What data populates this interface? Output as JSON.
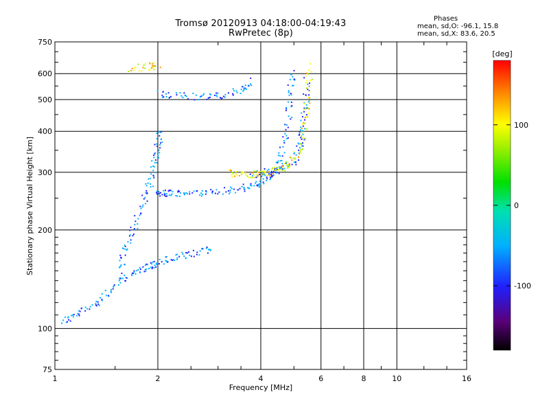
{
  "header": {
    "title_line1": "Tromsø 20120913 04:18:00-04:19:43",
    "title_line2": "RwPretec (8p)"
  },
  "stats": {
    "label": "Phases",
    "o_line": "mean, sd,O: -96.1, 15.8",
    "x_line": "mean, sd,X:  83.6, 20.5"
  },
  "chart_data": {
    "type": "scatter",
    "xlabel": "Frequency [MHz]",
    "ylabel": "Stationary phase Virtual Height [km]",
    "xscale": "log",
    "yscale": "log",
    "xlim": [
      1,
      16
    ],
    "ylim": [
      75,
      750
    ],
    "x_ticks": [
      1,
      2,
      4,
      6,
      8,
      10,
      16
    ],
    "x_tick_labels": [
      "1",
      "2",
      "4",
      "6",
      "8",
      "10",
      "16"
    ],
    "y_ticks": [
      75,
      100,
      200,
      300,
      400,
      500,
      600,
      750
    ],
    "y_tick_labels": [
      "75",
      "100",
      "200",
      "300",
      "400",
      "500",
      "600",
      "750"
    ],
    "grid": true,
    "colorbar": {
      "label": "[deg]",
      "range": [
        -180,
        180
      ],
      "ticks": [
        100,
        0,
        -100
      ],
      "tick_labels": [
        "100",
        "0",
        "-100"
      ]
    },
    "series": [
      {
        "name": "O-mode",
        "mean_phase": -96.1,
        "segments": [
          {
            "x": [
              1.05,
              1.15,
              1.3,
              1.45,
              1.6,
              1.75,
              1.9,
              2.05,
              2.3,
              2.6,
              2.9
            ],
            "y": [
              105,
              110,
              118,
              130,
              142,
              150,
              155,
              160,
              165,
              170,
              175
            ]
          },
          {
            "x": [
              1.55,
              1.6,
              1.7,
              1.8,
              1.9,
              1.95,
              2.0,
              2.05
            ],
            "y": [
              150,
              175,
              200,
              240,
              280,
              320,
              360,
              400
            ]
          },
          {
            "x": [
              2.0,
              2.1,
              2.3,
              2.6,
              3.0,
              3.4,
              3.8,
              4.1,
              4.4,
              4.6,
              4.8,
              4.9,
              4.95
            ],
            "y": [
              260,
              258,
              258,
              259,
              262,
              266,
              272,
              282,
              300,
              340,
              420,
              520,
              620
            ]
          },
          {
            "x": [
              2.0,
              2.3,
              2.7,
              3.1,
              3.5,
              3.8
            ],
            "y": [
              520,
              512,
              510,
              515,
              535,
              570
            ]
          },
          {
            "x": [
              3.8,
              4.2,
              4.6,
              5.0,
              5.2,
              5.3,
              5.4,
              5.45
            ],
            "y": [
              295,
              300,
              305,
              320,
              360,
              400,
              480,
              580
            ]
          }
        ]
      },
      {
        "name": "X-mode",
        "mean_phase": 83.6,
        "segments": [
          {
            "x": [
              3.2,
              3.5,
              3.8,
              4.1,
              4.5,
              4.9,
              5.2,
              5.4,
              5.5,
              5.55
            ],
            "y": [
              298,
              296,
              295,
              298,
              305,
              320,
              350,
              420,
              520,
              640
            ]
          },
          {
            "x": [
              1.65,
              1.9,
              2.0
            ],
            "y": [
              620,
              630,
              640
            ]
          }
        ]
      }
    ]
  }
}
